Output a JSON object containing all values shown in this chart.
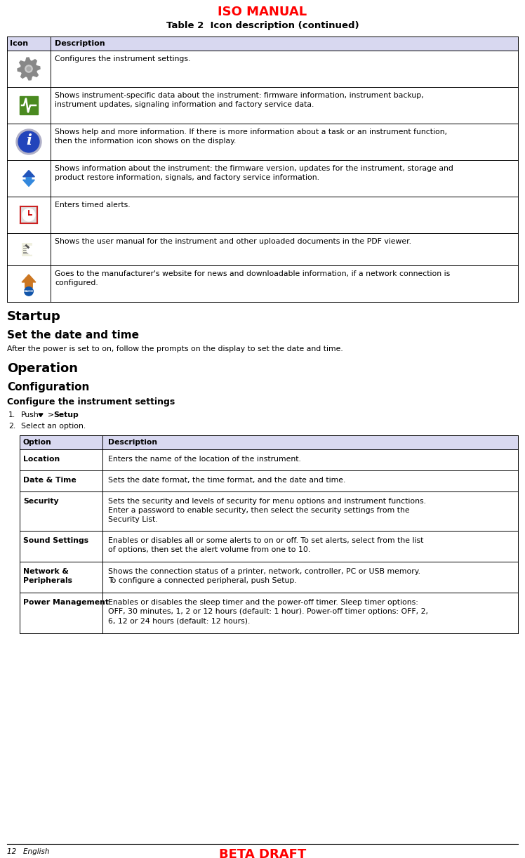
{
  "title_iso": "ISO MANUAL",
  "title_iso_color": "#FF0000",
  "title_iso_fontsize": 13,
  "table_title": "Table 2  Icon description (continued)",
  "table_title_fontsize": 9.5,
  "table_header_bg": "#D8D8F0",
  "table_header_col1": "Icon",
  "table_header_col2": "Description",
  "table_header_fontsize": 8,
  "table_body_fontsize": 7.8,
  "table_rows": [
    {
      "desc": "Configures the instrument settings."
    },
    {
      "desc": "Shows instrument-specific data about the instrument: firmware information, instrument backup,\ninstrument updates, signaling information and factory service data."
    },
    {
      "desc": "Shows help and more information. If there is more information about a task or an instrument function,\nthen the information icon shows on the display."
    },
    {
      "desc": "Shows information about the instrument: the firmware version, updates for the instrument, storage and\nproduct restore information, signals, and factory service information."
    },
    {
      "desc": "Enters timed alerts."
    },
    {
      "desc": "Shows the user manual for the instrument and other uploaded documents in the PDF viewer."
    },
    {
      "desc": "Goes to the manufacturer's website for news and downloadable information, if a network connection is\nconfigured."
    }
  ],
  "section_startup": "Startup",
  "section_startup_fontsize": 13,
  "section_set_date": "Set the date and time",
  "section_set_date_fontsize": 11,
  "para_set_date": "After the power is set to on, follow the prompts on the display to set the date and time.",
  "section_operation": "Operation",
  "section_operation_fontsize": 13,
  "section_configuration": "Configuration",
  "section_configuration_fontsize": 11,
  "section_configure_instr": "Configure the instrument settings",
  "section_configure_instr_fontsize": 9,
  "step2": "Select an option.",
  "options_header_bg": "#D8D8F0",
  "options_col1": "Option",
  "options_col2": "Description",
  "options_fontsize": 7.8,
  "options_rows": [
    {
      "option": "Location",
      "desc": "Enters the name of the location of the instrument."
    },
    {
      "option": "Date & Time",
      "desc": "Sets the date format, the time format, and the date and time."
    },
    {
      "option": "Security",
      "desc": "Sets the security and levels of security for menu options and instrument functions.\nEnter a password to enable security, then select the security settings from the\nSecurity List."
    },
    {
      "option": "Sound Settings",
      "desc": "Enables or disables all or some alerts to on or off. To set alerts, select from the list\nof options, then set the alert volume from one to 10."
    },
    {
      "option": "Network &\nPeripherals",
      "desc": "Shows the connection status of a printer, network, controller, PC or USB memory.\nTo configure a connected peripheral, push Setup."
    },
    {
      "option": "Power Management",
      "desc": "Enables or disables the sleep timer and the power-off timer. Sleep timer options:\nOFF, 30 minutes, 1, 2 or 12 hours (default: 1 hour). Power-off timer options: OFF, 2,\n6, 12 or 24 hours (default: 12 hours)."
    }
  ],
  "footer_left": "12   English",
  "footer_center": "BETA DRAFT",
  "footer_color": "#FF0000",
  "bg_color": "#FFFFFF",
  "main_fontsize": 7.8
}
